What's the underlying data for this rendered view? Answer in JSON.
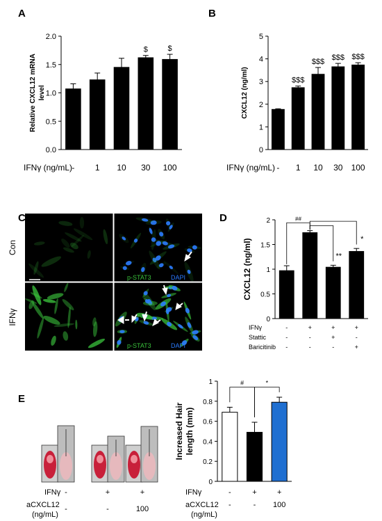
{
  "panels": {
    "A": {
      "letter": "A"
    },
    "B": {
      "letter": "B"
    },
    "C": {
      "letter": "C",
      "row_labels": [
        "Con",
        "IFNγ"
      ],
      "stain_green": "p-STAT3",
      "stain_blue": "DAPI",
      "colors": {
        "green": "#39c03b",
        "blue": "#2b7bff",
        "background": "#000000"
      }
    },
    "D": {
      "letter": "D"
    },
    "E": {
      "letter": "E",
      "photo_treatment": {
        "row_label": "IFNγ",
        "marks": [
          "-",
          "+",
          "+"
        ]
      },
      "photo_antibody": {
        "row_label": "aCXCL12",
        "unit": "(ng/mL)",
        "marks": [
          "-",
          "-",
          "100"
        ]
      }
    }
  },
  "chart_data": [
    {
      "id": "A",
      "type": "bar",
      "ylabel": "Relative CXCL12 mRNA level",
      "xlabel": "IFNγ (ng/mL)",
      "categories": [
        "-",
        "1",
        "10",
        "30",
        "100"
      ],
      "values": [
        1.07,
        1.23,
        1.45,
        1.62,
        1.59
      ],
      "errors": [
        0.09,
        0.12,
        0.16,
        0.04,
        0.09
      ],
      "annotations": [
        "",
        "",
        "",
        "$",
        "$"
      ],
      "ylim": [
        0.0,
        2.0
      ],
      "yticks": [
        "0.0",
        "0.5",
        "1.0",
        "1.5",
        "2.0"
      ],
      "bar_colors": [
        "#000000",
        "#000000",
        "#000000",
        "#000000",
        "#000000"
      ]
    },
    {
      "id": "B",
      "type": "bar",
      "ylabel": "CXCL12 (ng/ml)",
      "xlabel": "IFNγ (ng/mL)",
      "categories": [
        "-",
        "1",
        "10",
        "30",
        "100"
      ],
      "values": [
        1.77,
        2.73,
        3.32,
        3.65,
        3.73
      ],
      "errors": [
        0.03,
        0.07,
        0.3,
        0.15,
        0.1
      ],
      "annotations": [
        "",
        "$$$",
        "$$$",
        "$$$",
        "$$$"
      ],
      "ylim": [
        0,
        5
      ],
      "yticks": [
        "0",
        "1",
        "2",
        "3",
        "4",
        "5"
      ],
      "bar_colors": [
        "#000000",
        "#000000",
        "#000000",
        "#000000",
        "#000000"
      ]
    },
    {
      "id": "D",
      "type": "bar",
      "ylabel": "CXCL12 (ng/ml)",
      "treatments": [
        {
          "name": "IFNγ",
          "marks": [
            "-",
            "+",
            "+",
            "+"
          ]
        },
        {
          "name": "Stattic",
          "marks": [
            "-",
            "-",
            "+",
            "-"
          ]
        },
        {
          "name": "Baricitinib",
          "marks": [
            "-",
            "-",
            "-",
            "+"
          ]
        }
      ],
      "values": [
        0.97,
        1.74,
        1.04,
        1.36
      ],
      "errors": [
        0.1,
        0.04,
        0.04,
        0.06
      ],
      "ylim": [
        0,
        2
      ],
      "yticks": [
        "0",
        "0.5",
        "1",
        "1.5",
        "2"
      ],
      "bar_colors": [
        "#000000",
        "#000000",
        "#000000",
        "#000000"
      ],
      "significance": [
        {
          "from": 0,
          "to": 1,
          "label": "##"
        },
        {
          "from": 1,
          "to": 2,
          "label": "**"
        },
        {
          "from": 1,
          "to": 3,
          "label": "*"
        }
      ]
    },
    {
      "id": "E",
      "type": "bar",
      "ylabel": "Increased Hair length (mm)",
      "treatments": [
        {
          "name": "IFNγ",
          "marks": [
            "-",
            "+",
            "+"
          ]
        },
        {
          "name": "aCXCL12",
          "unit": "(ng/mL)",
          "marks": [
            "-",
            "-",
            "100"
          ]
        }
      ],
      "values": [
        0.69,
        0.49,
        0.79
      ],
      "errors": [
        0.05,
        0.1,
        0.05
      ],
      "ylim": [
        0,
        1
      ],
      "yticks": [
        "0",
        "0.2",
        "0.4",
        "0.6",
        "0.8",
        "1"
      ],
      "bar_colors": [
        "#ffffff",
        "#000000",
        "#1f6fd1"
      ],
      "significance": [
        {
          "from": 0,
          "to": 1,
          "label": "#"
        },
        {
          "from": 1,
          "to": 2,
          "label": "*"
        }
      ]
    }
  ]
}
